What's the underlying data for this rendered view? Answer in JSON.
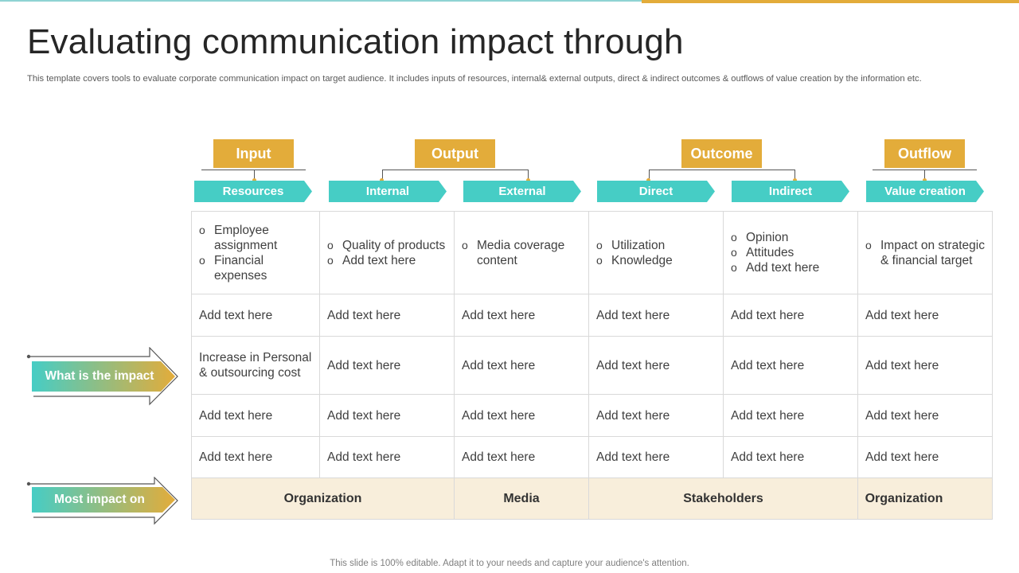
{
  "title": "Evaluating communication impact through",
  "subtitle": "This template covers tools to evaluate corporate communication impact on target audience. It includes inputs of resources, internal& external outputs, direct & indirect outcomes & outflows of value creation by the information etc.",
  "footer": "This slide is 100% editable. Adapt it to your needs and capture your audience's attention.",
  "colors": {
    "accent": "#e3ac3a",
    "teal": "#46cdc5",
    "band": "#f8eedb"
  },
  "categories": [
    "Input",
    "Output",
    "Outcome",
    "Outflow"
  ],
  "subheaders": [
    "Resources",
    "Internal",
    "External",
    "Direct",
    "Indirect",
    "Value creation"
  ],
  "row1": [
    [
      "Employee assignment",
      "Financial expenses"
    ],
    [
      "Quality of products",
      "Add text here"
    ],
    [
      "Media coverage content"
    ],
    [
      "Utilization",
      "Knowledge"
    ],
    [
      "Opinion",
      "Attitudes",
      "Add text here"
    ],
    [
      "Impact on strategic & financial target"
    ]
  ],
  "row2": [
    "Add text here",
    "Add text here",
    "Add text here",
    "Add text here",
    "Add text here",
    "Add text here"
  ],
  "row3": [
    "Increase in Personal & outsourcing cost",
    "Add text here",
    "Add text here",
    "Add text here",
    "Add text here",
    "Add text here"
  ],
  "row4": [
    "Add text here",
    "Add text here",
    "Add text here",
    "Add text here",
    "Add text here",
    "Add text here"
  ],
  "row5": [
    "Add text here",
    "Add text here",
    "Add text here",
    "Add text here",
    "Add text here",
    "Add text here"
  ],
  "most_impact_row": [
    "Organization",
    "Media",
    "Stakeholders",
    "Organization"
  ],
  "side_labels": {
    "impact": "What is the impact",
    "most_impact": "Most impact on"
  }
}
